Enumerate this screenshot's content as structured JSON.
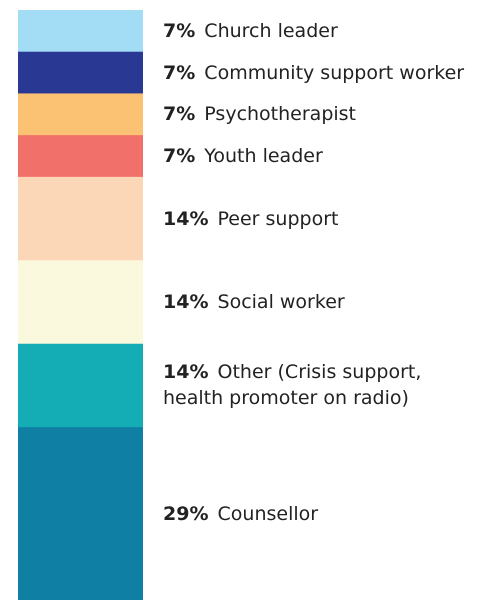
{
  "chart_data": {
    "type": "stacked-bar",
    "orientation": "vertical",
    "unit": "%",
    "legend_placement": "right",
    "categories": [
      "Church leader",
      "Community support worker",
      "Psychotherapist",
      "Youth leader",
      "Peer support",
      "Social worker",
      "Other (Crisis support, health promoter on radio)",
      "Counsellor"
    ],
    "values": [
      7,
      7,
      7,
      7,
      14,
      14,
      14,
      29
    ],
    "labels": [
      "7%",
      "7%",
      "7%",
      "7%",
      "14%",
      "14%",
      "14%",
      "29%"
    ],
    "colors": [
      "#a3dcf5",
      "#293892",
      "#fbc274",
      "#f2706a",
      "#fcd7b7",
      "#fbf9dd",
      "#14adb6",
      "#0f7fa3"
    ]
  }
}
